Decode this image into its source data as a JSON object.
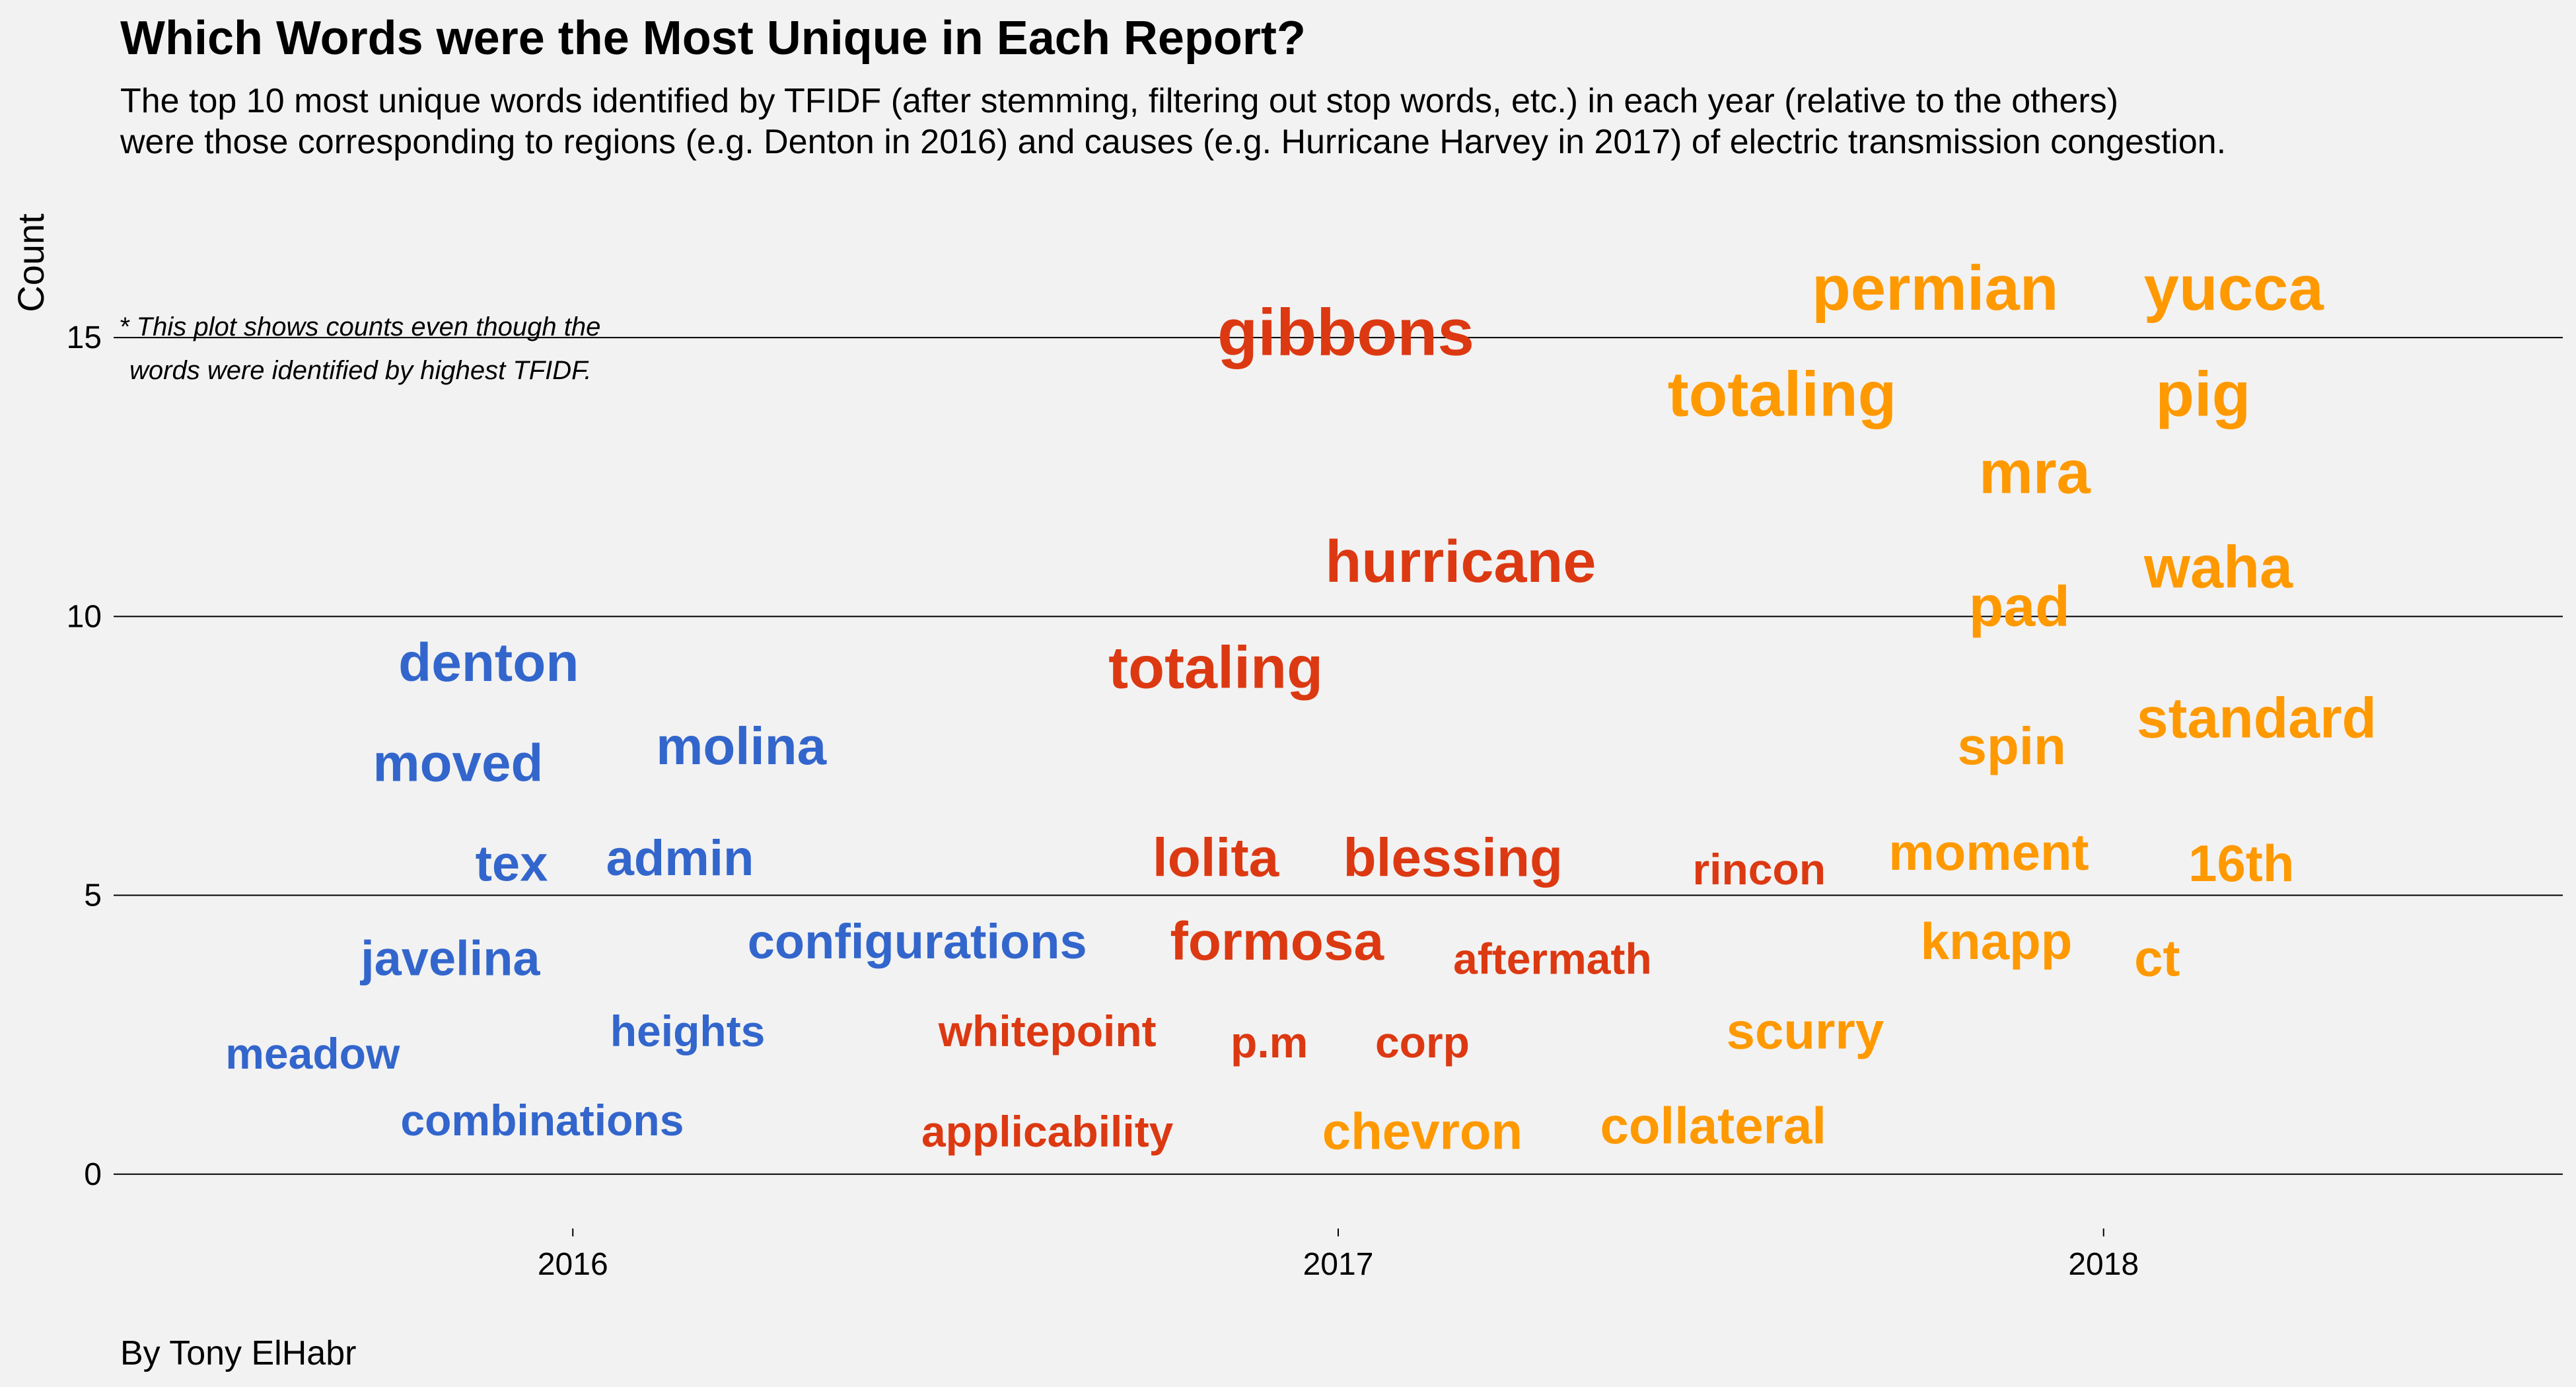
{
  "chart_data": {
    "type": "scatter",
    "title": "Which Words were the Most Unique in Each Report?",
    "subtitle": [
      "The top 10 most unique words identified by TFIDF (after stemming, filtering out stop words, etc.) in each year (relative to the others)",
      "were those corresponding to regions (e.g. Denton in 2016) and causes (e.g. Hurricane Harvey in 2017) of electric transmission congestion."
    ],
    "xlabel": "",
    "ylabel": "Count",
    "xlim": [
      2015.4,
      2018.6
    ],
    "ylim": [
      -0.5,
      17.5
    ],
    "x_ticks": [
      2016,
      2017,
      2018
    ],
    "y_ticks": [
      0,
      5,
      10,
      15
    ],
    "grid": "horizontal major only",
    "legend": "none",
    "annotation": [
      "* This plot shows counts even though the",
      "words were identified by highest TFIDF."
    ],
    "caption": "By Tony ElHabr",
    "colors": {
      "2016": "#3366cc",
      "2017": "#dc3912",
      "2018": "#ff9900"
    },
    "words": [
      {
        "label": "denton",
        "year": 2016,
        "x": 2015.89,
        "y": 9.1,
        "size": 82
      },
      {
        "label": "moved",
        "year": 2016,
        "x": 2015.85,
        "y": 7.3,
        "size": 80
      },
      {
        "label": "molina",
        "year": 2016,
        "x": 2016.22,
        "y": 7.6,
        "size": 80
      },
      {
        "label": "tex",
        "year": 2016,
        "x": 2015.92,
        "y": 5.5,
        "size": 76
      },
      {
        "label": "admin",
        "year": 2016,
        "x": 2016.14,
        "y": 5.6,
        "size": 76
      },
      {
        "label": "javelina",
        "year": 2016,
        "x": 2015.84,
        "y": 3.8,
        "size": 74
      },
      {
        "label": "configurations",
        "year": 2016,
        "x": 2016.45,
        "y": 4.1,
        "size": 74
      },
      {
        "label": "meadow",
        "year": 2016,
        "x": 2015.66,
        "y": 2.1,
        "size": 66
      },
      {
        "label": "heights",
        "year": 2016,
        "x": 2016.15,
        "y": 2.5,
        "size": 66
      },
      {
        "label": "combinations",
        "year": 2016,
        "x": 2015.96,
        "y": 0.9,
        "size": 66
      },
      {
        "label": "gibbons",
        "year": 2017,
        "x": 2017.01,
        "y": 15.0,
        "size": 100
      },
      {
        "label": "hurricane",
        "year": 2017,
        "x": 2017.16,
        "y": 10.9,
        "size": 90
      },
      {
        "label": "totaling",
        "year": 2017,
        "x": 2016.84,
        "y": 9.0,
        "size": 90
      },
      {
        "label": "lolita",
        "year": 2017,
        "x": 2016.84,
        "y": 5.6,
        "size": 82
      },
      {
        "label": "blessing",
        "year": 2017,
        "x": 2017.15,
        "y": 5.6,
        "size": 82
      },
      {
        "label": "rincon",
        "year": 2017,
        "x": 2017.55,
        "y": 5.4,
        "size": 66
      },
      {
        "label": "formosa",
        "year": 2017,
        "x": 2016.92,
        "y": 4.1,
        "size": 82
      },
      {
        "label": "aftermath",
        "year": 2017,
        "x": 2017.28,
        "y": 3.8,
        "size": 66
      },
      {
        "label": "whitepoint",
        "year": 2017,
        "x": 2016.62,
        "y": 2.5,
        "size": 66
      },
      {
        "label": "p.m",
        "year": 2017,
        "x": 2016.91,
        "y": 2.3,
        "size": 66
      },
      {
        "label": "corp",
        "year": 2017,
        "x": 2017.11,
        "y": 2.3,
        "size": 66
      },
      {
        "label": "applicability",
        "year": 2017,
        "x": 2016.62,
        "y": 0.7,
        "size": 66
      },
      {
        "label": "permian",
        "year": 2018,
        "x": 2017.78,
        "y": 15.8,
        "size": 96
      },
      {
        "label": "yucca",
        "year": 2018,
        "x": 2018.17,
        "y": 15.8,
        "size": 96
      },
      {
        "label": "totaling",
        "year": 2018,
        "x": 2017.58,
        "y": 13.9,
        "size": 96
      },
      {
        "label": "pig",
        "year": 2018,
        "x": 2018.13,
        "y": 13.9,
        "size": 96
      },
      {
        "label": "mra",
        "year": 2018,
        "x": 2017.91,
        "y": 12.5,
        "size": 92
      },
      {
        "label": "waha",
        "year": 2018,
        "x": 2018.15,
        "y": 10.8,
        "size": 90
      },
      {
        "label": "pad",
        "year": 2018,
        "x": 2017.89,
        "y": 10.1,
        "size": 86
      },
      {
        "label": "standard",
        "year": 2018,
        "x": 2018.2,
        "y": 8.1,
        "size": 86
      },
      {
        "label": "spin",
        "year": 2018,
        "x": 2017.88,
        "y": 7.6,
        "size": 80
      },
      {
        "label": "moment",
        "year": 2018,
        "x": 2017.85,
        "y": 5.7,
        "size": 78
      },
      {
        "label": "16th",
        "year": 2018,
        "x": 2018.18,
        "y": 5.5,
        "size": 78
      },
      {
        "label": "knapp",
        "year": 2018,
        "x": 2017.86,
        "y": 4.1,
        "size": 78
      },
      {
        "label": "ct",
        "year": 2018,
        "x": 2018.07,
        "y": 3.8,
        "size": 78
      },
      {
        "label": "scurry",
        "year": 2018,
        "x": 2017.61,
        "y": 2.5,
        "size": 78
      },
      {
        "label": "collateral",
        "year": 2018,
        "x": 2017.49,
        "y": 0.8,
        "size": 78
      },
      {
        "label": "chevron",
        "year": 2018,
        "x": 2017.11,
        "y": 0.7,
        "size": 78
      }
    ]
  }
}
